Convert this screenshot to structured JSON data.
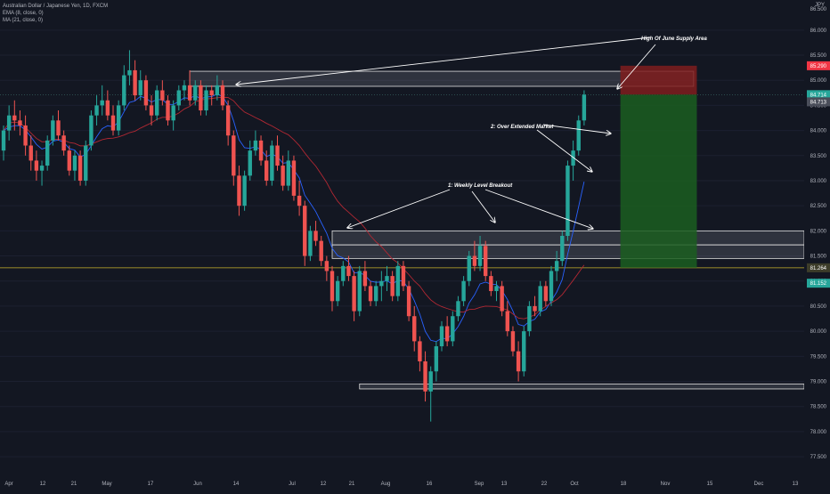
{
  "header": {
    "symbol_line": "Australian Dollar / Japanese Yen, 1D, FXCM",
    "ema_line": "EMA (8, close, 0)",
    "ma_line": "MA (21, close, 0)",
    "currency": "JPY"
  },
  "colors": {
    "background": "#131722",
    "up": "#26a69a",
    "down": "#ef5350",
    "ema": "#2962ff",
    "ma": "#b22833",
    "annotation": "#ffffff",
    "price_line": "#c9b32a",
    "target_zone": "#1b5e20",
    "stop_zone": "#7f1d1d"
  },
  "chart_data": {
    "type": "candlestick",
    "x_axis_labels": [
      "Apr",
      "12",
      "21",
      "May",
      "17",
      "Jun",
      "14",
      "Jul",
      "12",
      "21",
      "Aug",
      "16",
      "Sep",
      "13",
      "22",
      "Oct",
      "18",
      "Nov",
      "15",
      "Dec",
      "13"
    ],
    "y_axis_labels": [
      "86.000",
      "85.500",
      "85.000",
      "84.500",
      "84.000",
      "83.500",
      "83.000",
      "82.500",
      "82.000",
      "81.500",
      "81.000",
      "80.500",
      "80.000",
      "79.500",
      "79.000",
      "78.500",
      "78.000",
      "77.500"
    ],
    "y_top_label": "86.500",
    "ylim": [
      77.2,
      86.6
    ],
    "price_badges": [
      {
        "label": "85.290",
        "value": 85.29,
        "color": "#f23645"
      },
      {
        "label": "84.714",
        "value": 84.714,
        "color": "#26a69a"
      },
      {
        "label": "84.713",
        "value": 84.713,
        "color": "#4a4e5a"
      },
      {
        "label": "81.264",
        "value": 81.264,
        "color": "#3d3d2a"
      },
      {
        "label": "81.152",
        "value": 81.152,
        "color": "#26a69a"
      }
    ],
    "horizontal_line": 81.264,
    "zones": [
      {
        "name": "high-of-june-supply-area",
        "low": 84.88,
        "high": 85.18,
        "from_index": 34,
        "to_index": 126
      },
      {
        "name": "weekly-level-upper",
        "low": 81.72,
        "high": 82.0,
        "from_index": 60,
        "to_index": 160
      },
      {
        "name": "weekly-level-lower",
        "low": 81.45,
        "high": 81.72,
        "from_index": 60,
        "to_index": 160
      },
      {
        "name": "low-support",
        "low": 78.85,
        "high": 78.95,
        "from_index": 65,
        "to_index": 160
      }
    ],
    "position": {
      "entry": 84.714,
      "stop": 85.29,
      "target": 81.264,
      "from_index": 111,
      "to_index": 123
    },
    "annotations": [
      {
        "text": "High Of June  Supply Area"
      },
      {
        "text": "2: Over Extended Market"
      },
      {
        "text": "1: Weekly Level Breakout"
      }
    ],
    "candles": [
      [
        83.6,
        84.1,
        83.4,
        84.0
      ],
      [
        84.0,
        84.5,
        83.8,
        84.3
      ],
      [
        84.3,
        84.6,
        84.0,
        84.2
      ],
      [
        84.2,
        84.4,
        83.9,
        84.1
      ],
      [
        84.1,
        84.3,
        83.5,
        83.7
      ],
      [
        83.7,
        83.9,
        83.2,
        83.4
      ],
      [
        83.4,
        83.6,
        83.0,
        83.2
      ],
      [
        83.2,
        83.4,
        82.9,
        83.3
      ],
      [
        83.3,
        83.9,
        83.2,
        83.8
      ],
      [
        83.8,
        84.3,
        83.7,
        84.2
      ],
      [
        84.2,
        84.4,
        83.8,
        83.9
      ],
      [
        83.9,
        84.0,
        83.5,
        83.6
      ],
      [
        83.6,
        83.7,
        83.1,
        83.2
      ],
      [
        83.2,
        83.6,
        83.0,
        83.5
      ],
      [
        83.5,
        83.6,
        82.9,
        83.0
      ],
      [
        83.0,
        83.8,
        82.9,
        83.7
      ],
      [
        83.7,
        84.4,
        83.6,
        84.3
      ],
      [
        84.3,
        84.7,
        84.1,
        84.5
      ],
      [
        84.5,
        84.9,
        84.3,
        84.6
      ],
      [
        84.6,
        84.8,
        84.2,
        84.3
      ],
      [
        84.3,
        84.5,
        83.9,
        84.0
      ],
      [
        84.0,
        84.6,
        83.9,
        84.5
      ],
      [
        84.5,
        85.3,
        84.4,
        85.1
      ],
      [
        85.1,
        85.6,
        84.9,
        85.2
      ],
      [
        85.2,
        85.4,
        84.6,
        84.7
      ],
      [
        84.7,
        85.2,
        84.6,
        85.0
      ],
      [
        85.0,
        85.1,
        84.4,
        84.5
      ],
      [
        84.5,
        84.7,
        84.1,
        84.3
      ],
      [
        84.3,
        84.9,
        84.2,
        84.8
      ],
      [
        84.8,
        85.0,
        84.5,
        84.6
      ],
      [
        84.6,
        84.7,
        84.1,
        84.2
      ],
      [
        84.2,
        84.6,
        84.0,
        84.5
      ],
      [
        84.5,
        84.9,
        84.4,
        84.8
      ],
      [
        84.8,
        85.0,
        84.6,
        84.9
      ],
      [
        84.9,
        85.2,
        84.5,
        84.6
      ],
      [
        84.6,
        85.0,
        84.5,
        84.9
      ],
      [
        84.9,
        85.0,
        84.3,
        84.4
      ],
      [
        84.4,
        84.9,
        84.3,
        84.8
      ],
      [
        84.8,
        84.9,
        84.5,
        84.7
      ],
      [
        84.7,
        85.1,
        84.6,
        84.9
      ],
      [
        84.9,
        85.0,
        84.4,
        84.5
      ],
      [
        84.5,
        84.6,
        83.7,
        83.9
      ],
      [
        83.9,
        84.0,
        82.9,
        83.1
      ],
      [
        83.1,
        83.3,
        82.3,
        82.5
      ],
      [
        82.5,
        83.2,
        82.4,
        83.1
      ],
      [
        83.1,
        83.8,
        83.0,
        83.6
      ],
      [
        83.6,
        84.0,
        83.5,
        83.8
      ],
      [
        83.8,
        83.9,
        83.3,
        83.4
      ],
      [
        83.4,
        83.6,
        82.9,
        83.0
      ],
      [
        83.0,
        83.8,
        82.9,
        83.7
      ],
      [
        83.7,
        83.9,
        83.2,
        83.3
      ],
      [
        83.3,
        83.5,
        82.8,
        82.9
      ],
      [
        82.9,
        83.6,
        82.8,
        83.4
      ],
      [
        83.4,
        83.5,
        82.6,
        82.7
      ],
      [
        82.7,
        83.0,
        82.3,
        82.5
      ],
      [
        82.5,
        82.6,
        81.3,
        81.5
      ],
      [
        81.5,
        82.1,
        81.4,
        82.0
      ],
      [
        82.0,
        82.2,
        81.7,
        81.8
      ],
      [
        81.8,
        81.9,
        81.3,
        81.4
      ],
      [
        81.4,
        81.5,
        81.0,
        81.2
      ],
      [
        81.2,
        81.3,
        80.4,
        80.6
      ],
      [
        80.6,
        81.1,
        80.5,
        81.0
      ],
      [
        81.0,
        81.4,
        80.9,
        81.3
      ],
      [
        81.3,
        81.5,
        81.0,
        81.1
      ],
      [
        81.1,
        81.2,
        80.2,
        80.4
      ],
      [
        80.4,
        81.3,
        80.3,
        81.2
      ],
      [
        81.2,
        81.4,
        80.8,
        80.9
      ],
      [
        80.9,
        81.0,
        80.5,
        80.6
      ],
      [
        80.6,
        81.0,
        80.5,
        80.9
      ],
      [
        80.9,
        81.2,
        80.6,
        81.0
      ],
      [
        81.0,
        81.3,
        80.8,
        81.1
      ],
      [
        81.1,
        81.2,
        80.6,
        80.7
      ],
      [
        80.7,
        81.4,
        80.6,
        81.3
      ],
      [
        81.3,
        81.4,
        80.8,
        80.9
      ],
      [
        80.9,
        81.0,
        80.2,
        80.3
      ],
      [
        80.3,
        80.5,
        79.6,
        79.8
      ],
      [
        79.8,
        79.9,
        79.2,
        79.4
      ],
      [
        79.4,
        79.6,
        78.6,
        78.8
      ],
      [
        78.8,
        79.3,
        78.2,
        79.2
      ],
      [
        79.2,
        79.8,
        79.0,
        79.7
      ],
      [
        79.7,
        80.2,
        79.6,
        80.1
      ],
      [
        80.1,
        80.3,
        79.7,
        79.8
      ],
      [
        79.8,
        80.4,
        79.7,
        80.3
      ],
      [
        80.3,
        80.7,
        80.2,
        80.6
      ],
      [
        80.6,
        81.1,
        80.5,
        81.0
      ],
      [
        81.0,
        81.6,
        80.9,
        81.5
      ],
      [
        81.5,
        81.8,
        81.2,
        81.3
      ],
      [
        81.3,
        81.9,
        81.2,
        81.7
      ],
      [
        81.7,
        81.8,
        81.0,
        81.1
      ],
      [
        81.1,
        81.2,
        80.7,
        80.8
      ],
      [
        80.8,
        81.0,
        80.6,
        80.9
      ],
      [
        80.9,
        81.0,
        80.3,
        80.4
      ],
      [
        80.4,
        80.6,
        79.9,
        80.0
      ],
      [
        80.0,
        80.1,
        79.5,
        79.6
      ],
      [
        79.6,
        79.8,
        79.0,
        79.2
      ],
      [
        79.2,
        80.1,
        79.1,
        80.0
      ],
      [
        80.0,
        80.6,
        79.9,
        80.5
      ],
      [
        80.5,
        80.7,
        80.3,
        80.4
      ],
      [
        80.4,
        81.0,
        80.3,
        80.9
      ],
      [
        80.9,
        81.0,
        80.5,
        80.6
      ],
      [
        80.6,
        81.3,
        80.5,
        81.2
      ],
      [
        81.2,
        81.6,
        81.0,
        81.4
      ],
      [
        81.4,
        82.0,
        81.3,
        81.9
      ],
      [
        81.9,
        83.4,
        81.8,
        83.3
      ],
      [
        83.3,
        83.8,
        83.0,
        83.6
      ],
      [
        83.6,
        84.3,
        83.5,
        84.2
      ],
      [
        84.2,
        84.8,
        84.1,
        84.714
      ]
    ]
  }
}
